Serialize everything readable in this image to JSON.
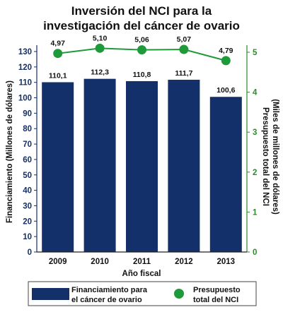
{
  "chart_data": {
    "type": "bar",
    "title_lines": [
      "Inversión del NCI para la",
      "investigación del cáncer de ovario"
    ],
    "categories": [
      "2009",
      "2010",
      "2011",
      "2012",
      "2013"
    ],
    "series": [
      {
        "name": "Financiamiento para el cáncer de ovario",
        "legend_lines": [
          "Financiamiento para",
          "el cáncer de ovario"
        ],
        "type": "bar",
        "axis": "left",
        "color": "#13306b",
        "values": [
          110.1,
          112.3,
          110.8,
          111.7,
          100.6
        ],
        "labels": [
          "110,1",
          "112,3",
          "110,8",
          "111,7",
          "100,6"
        ]
      },
      {
        "name": "Presupuesto total del NCI",
        "legend_lines": [
          "Presupuesto",
          "total del NCI"
        ],
        "type": "line",
        "axis": "right",
        "color": "#1f9a3a",
        "values": [
          4.97,
          5.1,
          5.06,
          5.07,
          4.79
        ],
        "labels": [
          "4,97",
          "5,10",
          "5,06",
          "5,07",
          "4,79"
        ]
      }
    ],
    "xlabel": "Año fiscal",
    "ylabel_left": "Financiamiento (Millones de dólares)",
    "ylabel_right_lines": [
      "Presupuesto total del NCI",
      "(Miles de millones de dólares)"
    ],
    "ylim_left": [
      0,
      130
    ],
    "yticks_left": [
      0,
      10,
      20,
      30,
      40,
      50,
      60,
      70,
      80,
      90,
      100,
      110,
      120,
      130
    ],
    "ylim_right": [
      0,
      5.2
    ],
    "yticks_right": [
      0,
      1,
      2,
      3,
      4,
      5
    ],
    "grid": false,
    "legend_position": "bottom"
  }
}
